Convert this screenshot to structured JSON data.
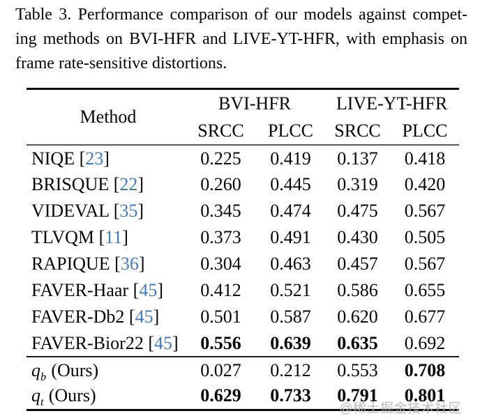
{
  "caption": {
    "lines": [
      "Table 3. Performance comparison of our models against compet-",
      "ing methods on BVI-HFR and LIVE-YT-HFR, with emphasis on",
      "frame rate-sensitive distortions."
    ]
  },
  "table": {
    "method_header": "Method",
    "groups": [
      {
        "label": "BVI-HFR"
      },
      {
        "label": "LIVE-YT-HFR"
      }
    ],
    "subheaders": [
      "SRCC",
      "PLCC",
      "SRCC",
      "PLCC"
    ],
    "rows": [
      {
        "method": "NIQE",
        "cite": "23",
        "values": [
          "0.225",
          "0.419",
          "0.137",
          "0.418"
        ],
        "bold": [
          false,
          false,
          false,
          false
        ]
      },
      {
        "method": "BRISQUE",
        "cite": "22",
        "values": [
          "0.260",
          "0.445",
          "0.319",
          "0.420"
        ],
        "bold": [
          false,
          false,
          false,
          false
        ]
      },
      {
        "method": "VIDEVAL",
        "cite": "35",
        "values": [
          "0.345",
          "0.474",
          "0.475",
          "0.567"
        ],
        "bold": [
          false,
          false,
          false,
          false
        ]
      },
      {
        "method": "TLVQM",
        "cite": "11",
        "values": [
          "0.373",
          "0.491",
          "0.430",
          "0.505"
        ],
        "bold": [
          false,
          false,
          false,
          false
        ]
      },
      {
        "method": "RAPIQUE",
        "cite": "36",
        "values": [
          "0.304",
          "0.463",
          "0.457",
          "0.567"
        ],
        "bold": [
          false,
          false,
          false,
          false
        ]
      },
      {
        "method": "FAVER-Haar",
        "cite": "45",
        "values": [
          "0.412",
          "0.521",
          "0.586",
          "0.655"
        ],
        "bold": [
          false,
          false,
          false,
          false
        ]
      },
      {
        "method": "FAVER-Db2",
        "cite": "45",
        "values": [
          "0.501",
          "0.587",
          "0.620",
          "0.677"
        ],
        "bold": [
          false,
          false,
          false,
          false
        ]
      },
      {
        "method": "FAVER-Bior22",
        "cite": "45",
        "values": [
          "0.556",
          "0.639",
          "0.635",
          "0.692"
        ],
        "bold": [
          true,
          true,
          true,
          false
        ]
      }
    ],
    "ours_rows": [
      {
        "method_var": "q",
        "method_sub": "b",
        "method_note": "(Ours)",
        "values": [
          "0.027",
          "0.212",
          "0.553",
          "0.708"
        ],
        "bold": [
          false,
          false,
          false,
          true
        ]
      },
      {
        "method_var": "q",
        "method_sub": "t",
        "method_note": "(Ours)",
        "values": [
          "0.629",
          "0.733",
          "0.791",
          "0.801"
        ],
        "bold": [
          true,
          true,
          true,
          true
        ]
      }
    ]
  },
  "watermark": {
    "text": "@稀土掘金技术社区"
  },
  "colors": {
    "citation_blue": "#3e7bc4",
    "rule_black": "#0a0a0a",
    "rule_gray": "#5a5a5a",
    "watermark_gray": "#b5b5b5"
  }
}
